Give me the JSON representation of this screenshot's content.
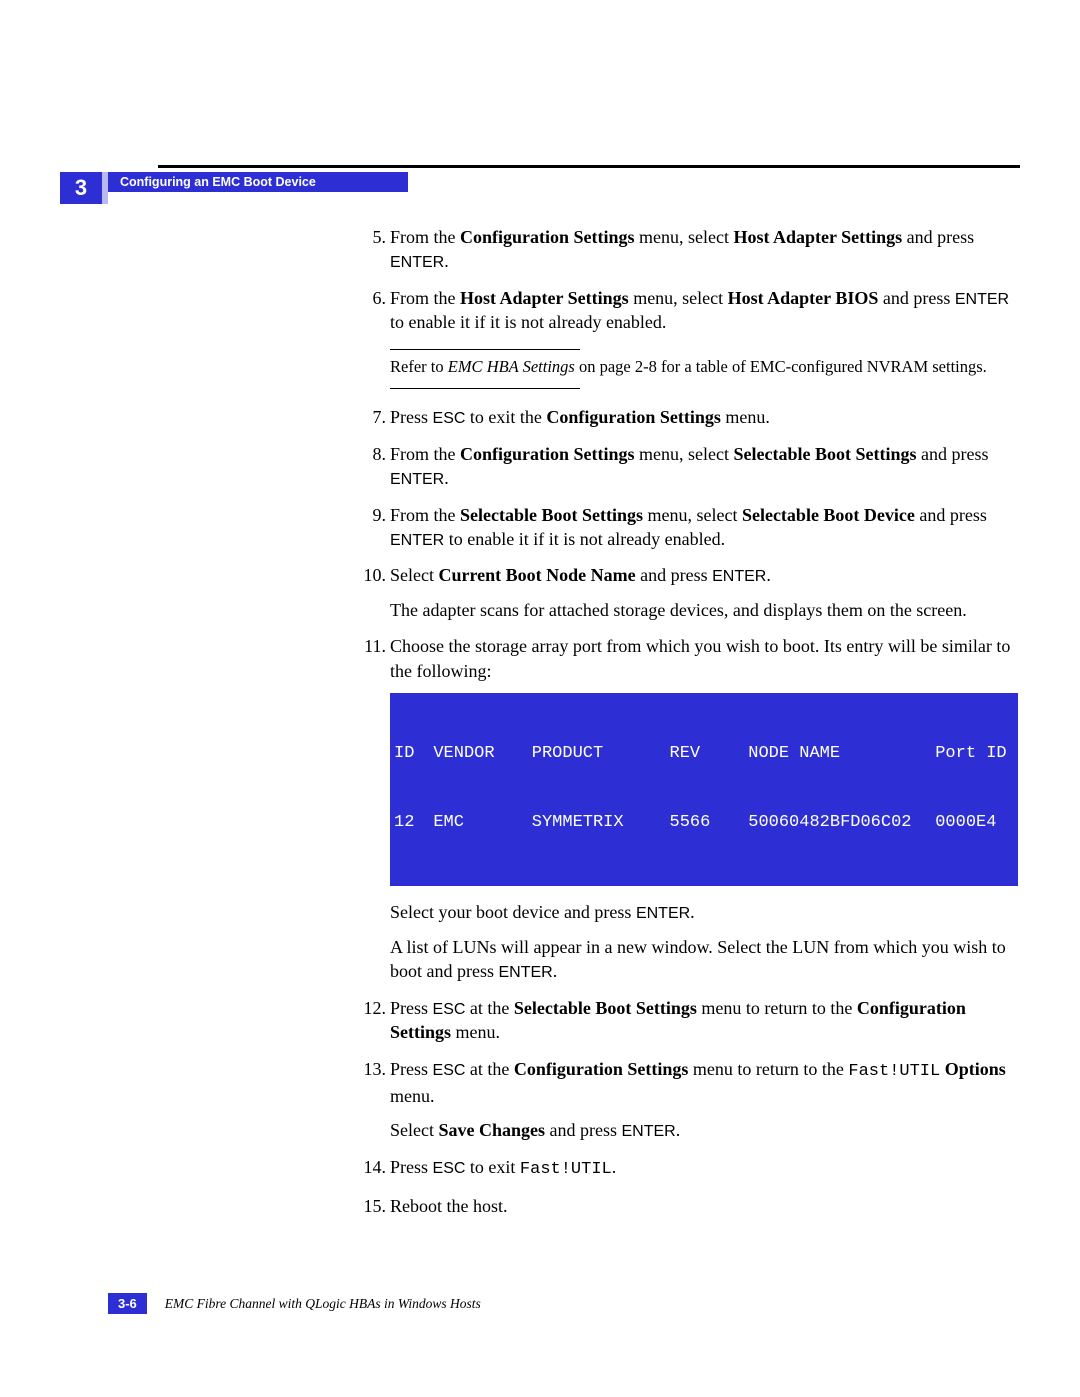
{
  "colors": {
    "brand_blue": "#2d2fd4",
    "brand_blue_light": "#b9b9f0",
    "text": "#000000",
    "page_bg": "#ffffff",
    "terminal_text": "#ffffff"
  },
  "typography": {
    "body_family": "Book Antiqua / Palatino serif",
    "body_size_pt": 13,
    "key_family": "Arial sans-serif",
    "mono_family": "Courier New",
    "heading_family": "Arial sans-serif"
  },
  "chapter_number": "3",
  "section_title": "Configuring an EMC Boot Device",
  "steps": {
    "s5": {
      "num": "5.",
      "pre": "From the ",
      "b1": "Configuration Settings",
      "mid1": " menu, select ",
      "b2": "Host Adapter Settings",
      "mid2": " and press ",
      "key": "ENTER",
      "post": "."
    },
    "s6": {
      "num": "6.",
      "pre": "From the ",
      "b1": "Host Adapter Settings",
      "mid1": " menu, select ",
      "b2": "Host Adapter BIOS",
      "mid2": " and press ",
      "key": "ENTER",
      "post": " to enable it if it is not already enabled.",
      "note_pre": "Refer to ",
      "note_i": "EMC HBA Settings",
      "note_post": " on page 2-8 for a table of EMC-configured NVRAM settings."
    },
    "s7": {
      "num": "7.",
      "pre": "Press ",
      "key": "ESC",
      "mid": " to exit the ",
      "b1": "Configuration Settings",
      "post": " menu."
    },
    "s8": {
      "num": "8.",
      "pre": "From the ",
      "b1": "Configuration Settings",
      "mid1": " menu, select ",
      "b2": "Selectable Boot Settings",
      "mid2": " and press ",
      "key": "ENTER",
      "post": "."
    },
    "s9": {
      "num": "9.",
      "pre": "From the ",
      "b1": "Selectable Boot Settings",
      "mid1": " menu, select ",
      "b2": "Selectable Boot Device",
      "mid2": " and press ",
      "key": "ENTER",
      "post": " to enable it if it is not already enabled."
    },
    "s10": {
      "num": "10.",
      "pre": "Select ",
      "b1": "Current Boot Node Name",
      "mid": " and press ",
      "key": "ENTER",
      "post": ".",
      "p2": "The adapter scans for attached storage devices, and displays them on the screen."
    },
    "s11": {
      "num": "11.",
      "p1": "Choose the storage array port from which you wish to boot. Its entry will be similar to the following:",
      "after_pre": "Select your boot device and press ",
      "after_key": "ENTER",
      "after_post": ".",
      "p3_pre": "A list of LUNs will appear in a new window. Select the LUN from which you wish to boot and press ",
      "p3_key": "ENTER",
      "p3_post": "."
    },
    "s12": {
      "num": "12.",
      "pre": "Press ",
      "key": "ESC",
      "mid1": " at the ",
      "b1": "Selectable Boot Settings",
      "mid2": " menu to return to the ",
      "b2": "Configuration Settings",
      "post": " menu."
    },
    "s13": {
      "num": "13.",
      "pre": "Press ",
      "key": "ESC",
      "mid1": " at the ",
      "b1": "Configuration Settings",
      "mid2": " menu to return to the ",
      "mono": "Fast!UTIL",
      "b2": " Options",
      "post": " menu.",
      "p2_pre": "Select ",
      "p2_b": "Save Changes",
      "p2_mid": " and press ",
      "p2_key": "ENTER",
      "p2_post": "."
    },
    "s14": {
      "num": "14.",
      "pre": "Press ",
      "key": "ESC",
      "mid": " to exit ",
      "mono": "Fast!UTIL",
      "post": "."
    },
    "s15": {
      "num": "15.",
      "text": "Reboot the host."
    }
  },
  "terminal": {
    "type": "table",
    "background_color": "#2d2fd4",
    "text_color": "#ffffff",
    "font_family": "Courier New",
    "font_size_pt": 12,
    "columns": [
      "ID",
      "VENDOR",
      "PRODUCT",
      "REV",
      "NODE NAME",
      "Port ID"
    ],
    "rows": [
      [
        "12",
        "EMC",
        "SYMMETRIX",
        "5566",
        "50060482BFD06C02",
        "0000E4"
      ]
    ]
  },
  "footer": {
    "page_number": "3-6",
    "book_title": "EMC Fibre Channel with QLogic HBAs in Windows Hosts"
  }
}
